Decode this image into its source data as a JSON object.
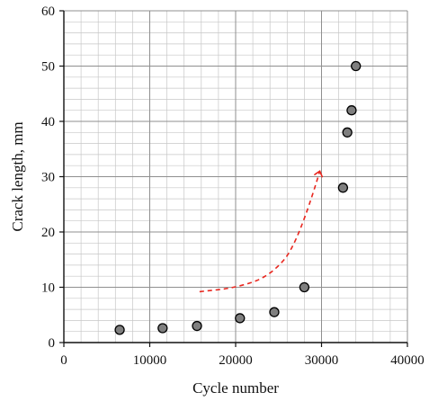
{
  "chart_data": {
    "type": "scatter",
    "title": "",
    "xlabel": "Cycle number",
    "ylabel": "Crack length, mm",
    "xlim": [
      0,
      40000
    ],
    "ylim": [
      0,
      60
    ],
    "x_ticks": [
      0,
      10000,
      20000,
      30000,
      40000
    ],
    "y_ticks": [
      0,
      10,
      20,
      30,
      40,
      50,
      60
    ],
    "x_tick_labels": [
      "0",
      "10000",
      "20000",
      "30000",
      "40000"
    ],
    "y_tick_labels": [
      "0",
      "10",
      "20",
      "30",
      "40",
      "50",
      "60"
    ],
    "grid": true,
    "minor_grid": true,
    "series": [
      {
        "marker_color": "#7f7f7f",
        "edge_color": "#000000",
        "points": [
          {
            "x": 6500,
            "y": 2.3
          },
          {
            "x": 11500,
            "y": 2.6
          },
          {
            "x": 15500,
            "y": 3.0
          },
          {
            "x": 20500,
            "y": 4.4
          },
          {
            "x": 24500,
            "y": 5.5
          },
          {
            "x": 28000,
            "y": 10.0
          },
          {
            "x": 32500,
            "y": 28.0
          },
          {
            "x": 33000,
            "y": 38.0
          },
          {
            "x": 33500,
            "y": 42.0
          },
          {
            "x": 34000,
            "y": 50.0
          }
        ]
      }
    ],
    "annotations": [
      {
        "type": "dashed-arrow",
        "color": "#e8261e",
        "path": [
          {
            "x": 15800,
            "y": 9.2
          },
          {
            "x": 20000,
            "y": 9.9
          },
          {
            "x": 24000,
            "y": 12.0
          },
          {
            "x": 27300,
            "y": 18.0
          },
          {
            "x": 29800,
            "y": 31.0
          }
        ]
      }
    ]
  }
}
